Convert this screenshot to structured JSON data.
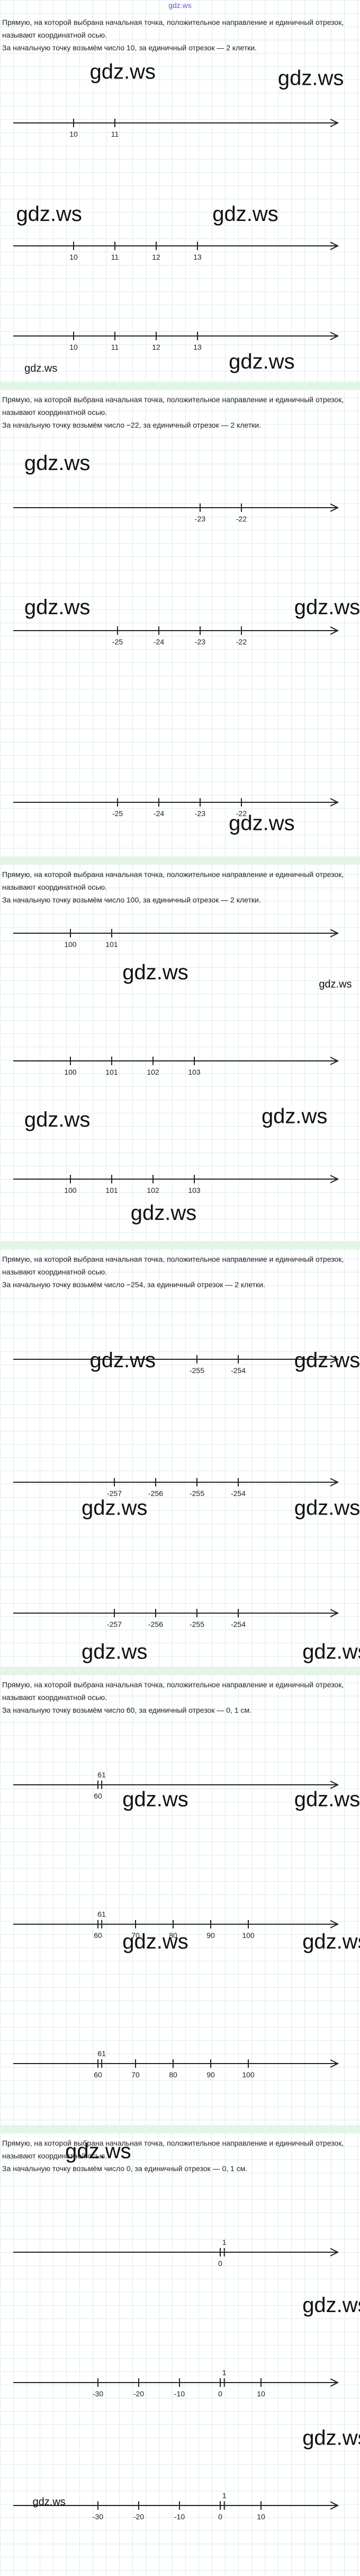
{
  "header": "gdz.ws",
  "watermark": "gdz.ws",
  "sections": [
    {
      "definition": "Прямую, на которой выбрана начальная точка, положительное направление и единичный отрезок, называют координатной осью.",
      "condition": "За начальную точку возьмём число 10, за единичный отрезок — 2 клетки.",
      "axes": [
        {
          "ticks": [
            10,
            11
          ]
        },
        {
          "ticks": [
            10,
            11,
            12,
            13
          ]
        },
        {
          "ticks": [
            10,
            11,
            12,
            13
          ]
        }
      ]
    },
    {
      "definition": "Прямую, на которой выбрана начальная точка, положительное направление и единичный отрезок, называют координатной осью.",
      "condition": "За начальную точку возьмём число −22, за единичный отрезок — 2 клетки.",
      "axes": [
        {
          "ticks": [
            -23,
            -22
          ]
        },
        {
          "ticks": [
            -25,
            -24,
            -23,
            -22
          ]
        },
        {
          "ticks": [
            -25,
            -24,
            -23,
            -22
          ]
        }
      ]
    },
    {
      "definition": "Прямую, на которой выбрана начальная точка, положительное направление и единичный отрезок, называют координатной осью.",
      "condition": "За начальную точку возьмём число 100, за единичный отрезок — 2 клетки.",
      "axes": [
        {
          "ticks": [
            100,
            101
          ]
        },
        {
          "ticks": [
            100,
            101,
            102,
            103
          ]
        },
        {
          "ticks": [
            100,
            101,
            102,
            103
          ]
        }
      ]
    },
    {
      "definition": "Прямую, на которой выбрана начальная точка, положительное направление и единичный отрезок, называют координатной осью.",
      "condition": "За начальную точку возьмём число −254, за единичный отрезок — 2 клетки.",
      "axes": [
        {
          "ticks": [
            -255,
            -254
          ]
        },
        {
          "ticks": [
            -257,
            -256,
            -255,
            -254
          ]
        },
        {
          "ticks": [
            -257,
            -256,
            -255,
            -254
          ]
        }
      ]
    },
    {
      "definition": "Прямую, на которой выбрана начальная точка, положительное направление и единичный отрезок, называют координатной осью.",
      "condition": "За начальную точку возьмём число 60, за единичный отрезок — 0, 1 см.",
      "axes": [
        {
          "ticks": [
            60
          ],
          "above": [
            61
          ]
        },
        {
          "ticks": [
            60,
            70,
            80,
            90,
            100
          ],
          "above": [
            61
          ]
        },
        {
          "ticks": [
            60,
            70,
            80,
            90,
            100
          ],
          "above": [
            61
          ]
        }
      ]
    },
    {
      "definition": "Прямую, на которой выбрана начальная точка, положительное направление и единичный отрезок, называют координатной осью.",
      "condition": "За начальную точку возьмём число 0, за единичный отрезок — 0, 1 см.",
      "axes": [
        {
          "ticks": [
            0
          ],
          "above": [
            1
          ]
        },
        {
          "ticks": [
            -30,
            -20,
            -10,
            0,
            10
          ],
          "above": [
            1
          ]
        },
        {
          "ticks": [
            -30,
            -20,
            -10,
            0,
            10
          ],
          "above": [
            1
          ]
        }
      ]
    }
  ]
}
